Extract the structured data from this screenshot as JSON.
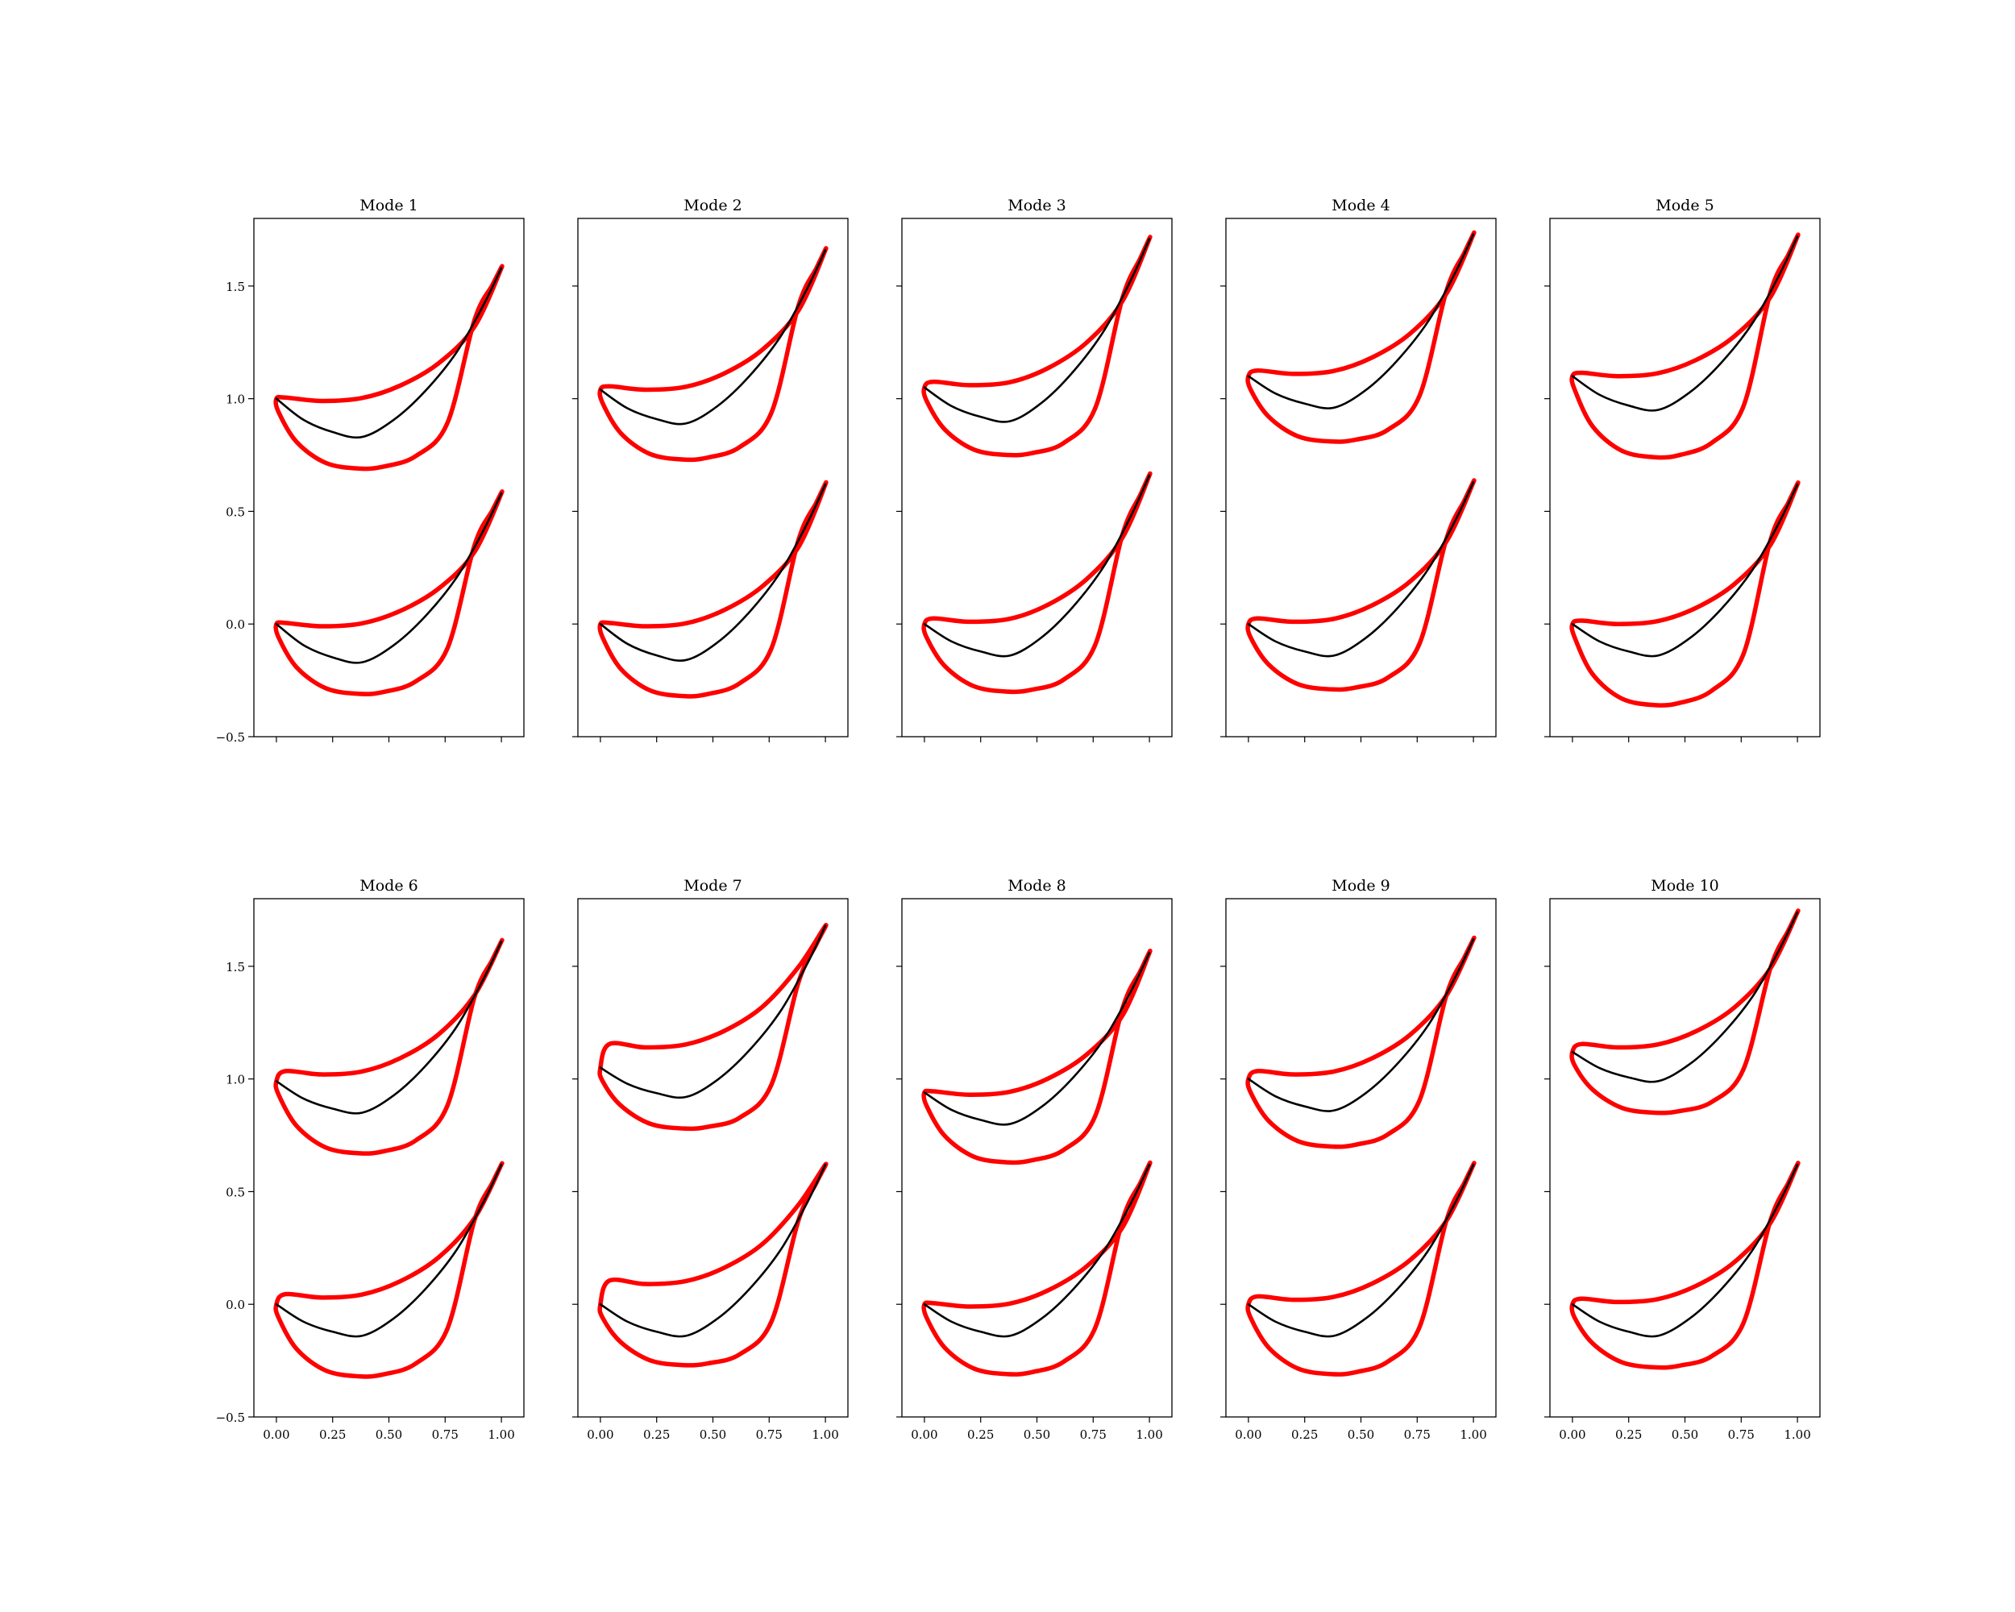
{
  "chart_data": {
    "type": "line",
    "grid": false,
    "layout": "2 rows x 5 columns of panels, shared axes",
    "xlim": [
      -0.1,
      1.1
    ],
    "ylim": [
      -0.5,
      1.8
    ],
    "xticks": [
      0.0,
      0.25,
      0.5,
      0.75,
      1.0
    ],
    "xtick_labels": [
      "0.00",
      "0.25",
      "0.50",
      "0.75",
      "1.00"
    ],
    "yticks": [
      -0.5,
      0.0,
      0.5,
      1.0,
      1.5
    ],
    "ytick_labels": [
      "−0.5",
      "0.0",
      "0.5",
      "1.0",
      "1.5"
    ],
    "colors": {
      "perturbed_shape": "#ff0000",
      "camber_line": "#000000"
    },
    "panels": [
      {
        "title": "Mode 1",
        "upper": {
          "offset": 1.0,
          "te": 1.58,
          "suction": 1.0,
          "pressure": 0.69,
          "camber": 0.83
        },
        "lower": {
          "offset": 0.0,
          "te": 0.58,
          "suction": 0.0,
          "pressure": -0.31,
          "camber": -0.17
        }
      },
      {
        "title": "Mode 2",
        "upper": {
          "offset": 1.04,
          "te": 1.66,
          "suction": 1.05,
          "pressure": 0.73,
          "camber": 0.89
        },
        "lower": {
          "offset": 0.0,
          "te": 0.62,
          "suction": 0.0,
          "pressure": -0.32,
          "camber": -0.16
        }
      },
      {
        "title": "Mode 3",
        "upper": {
          "offset": 1.05,
          "te": 1.71,
          "suction": 1.07,
          "pressure": 0.75,
          "camber": 0.9
        },
        "lower": {
          "offset": 0.0,
          "te": 0.66,
          "suction": 0.02,
          "pressure": -0.3,
          "camber": -0.14
        }
      },
      {
        "title": "Mode 4",
        "upper": {
          "offset": 1.1,
          "te": 1.73,
          "suction": 1.12,
          "pressure": 0.81,
          "camber": 0.96
        },
        "lower": {
          "offset": 0.0,
          "te": 0.63,
          "suction": 0.02,
          "pressure": -0.29,
          "camber": -0.14
        }
      },
      {
        "title": "Mode 5",
        "upper": {
          "offset": 1.1,
          "te": 1.72,
          "suction": 1.11,
          "pressure": 0.74,
          "camber": 0.95
        },
        "lower": {
          "offset": 0.0,
          "te": 0.62,
          "suction": 0.01,
          "pressure": -0.36,
          "camber": -0.14
        }
      },
      {
        "title": "Mode 6",
        "upper": {
          "offset": 0.99,
          "te": 1.61,
          "suction": 1.03,
          "pressure": 0.67,
          "camber": 0.85
        },
        "lower": {
          "offset": 0.0,
          "te": 0.62,
          "suction": 0.04,
          "pressure": -0.32,
          "camber": -0.14
        }
      },
      {
        "title": "Mode 7",
        "upper": {
          "offset": 1.05,
          "te": 1.68,
          "suction": 1.15,
          "pressure": 0.78,
          "camber": 0.92
        },
        "lower": {
          "offset": 0.0,
          "te": 0.62,
          "suction": 0.1,
          "pressure": -0.27,
          "camber": -0.14
        }
      },
      {
        "title": "Mode 8",
        "upper": {
          "offset": 0.94,
          "te": 1.56,
          "suction": 0.94,
          "pressure": 0.63,
          "camber": 0.8
        },
        "lower": {
          "offset": 0.0,
          "te": 0.62,
          "suction": 0.0,
          "pressure": -0.31,
          "camber": -0.14
        }
      },
      {
        "title": "Mode 9",
        "upper": {
          "offset": 1.0,
          "te": 1.62,
          "suction": 1.03,
          "pressure": 0.7,
          "camber": 0.86
        },
        "lower": {
          "offset": 0.0,
          "te": 0.62,
          "suction": 0.03,
          "pressure": -0.31,
          "camber": -0.14
        }
      },
      {
        "title": "Mode 10",
        "upper": {
          "offset": 1.12,
          "te": 1.74,
          "suction": 1.15,
          "pressure": 0.85,
          "camber": 0.99
        },
        "lower": {
          "offset": 0.0,
          "te": 0.62,
          "suction": 0.02,
          "pressure": -0.28,
          "camber": -0.14
        }
      }
    ]
  }
}
